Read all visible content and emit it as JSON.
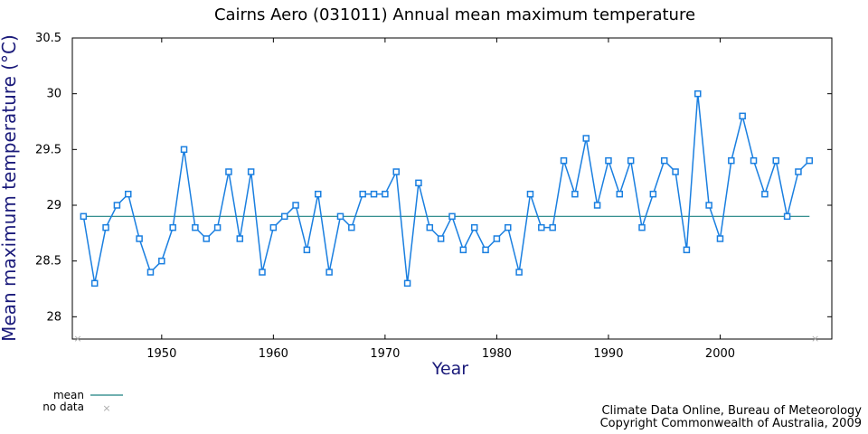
{
  "chart_data": {
    "type": "line",
    "title": "Cairns Aero (031011) Annual mean maximum temperature",
    "xlabel": "Year",
    "ylabel": "Mean maximum temperature (°C)",
    "xlim": [
      1942,
      2010
    ],
    "ylim": [
      27.8,
      30.5
    ],
    "x_ticks": [
      1950,
      1960,
      1970,
      1980,
      1990,
      2000
    ],
    "y_ticks": [
      "28",
      "28.5",
      "29",
      "29.5",
      "30",
      "30.5"
    ],
    "line_color": "#1a7fe0",
    "mean_color": "#1a8080",
    "mean_value": 28.9,
    "legend": {
      "mean": "mean",
      "no_data": "no data",
      "placement": "bottom-left"
    },
    "no_data_years": [
      1942,
      2009
    ],
    "credits": [
      "Climate Data Online, Bureau of Meteorology",
      "Copyright Commonwealth of Australia, 2009"
    ],
    "series": [
      {
        "x": [
          1943,
          1944,
          1945,
          1946,
          1947,
          1948,
          1949,
          1950,
          1951,
          1952,
          1953,
          1954,
          1955,
          1956,
          1957,
          1958,
          1959,
          1960,
          1961,
          1962,
          1963,
          1964,
          1965,
          1966,
          1967,
          1968,
          1969,
          1970,
          1971,
          1972,
          1973,
          1974,
          1975,
          1976,
          1977,
          1978,
          1979,
          1980,
          1981,
          1982,
          1983,
          1984,
          1985,
          1986,
          1987,
          1988,
          1989,
          1990,
          1991,
          1992,
          1993,
          1994,
          1995,
          1996,
          1997,
          1998,
          1999,
          2000,
          2001,
          2002,
          2003,
          2004,
          2005,
          2006,
          2007,
          2008
        ],
        "values": [
          28.9,
          28.3,
          28.8,
          29.0,
          29.1,
          28.7,
          28.4,
          28.5,
          28.8,
          29.5,
          28.8,
          28.7,
          28.8,
          29.3,
          28.7,
          29.3,
          28.4,
          28.8,
          28.9,
          29.0,
          28.6,
          29.1,
          28.4,
          28.9,
          28.8,
          29.1,
          29.1,
          29.1,
          29.3,
          28.3,
          29.2,
          28.8,
          28.7,
          28.9,
          28.6,
          28.8,
          28.6,
          28.7,
          28.8,
          28.4,
          29.1,
          28.8,
          28.8,
          29.4,
          29.1,
          29.6,
          29.0,
          29.4,
          29.1,
          29.4,
          28.8,
          29.1,
          29.4,
          29.3,
          28.6,
          30.0,
          29.0,
          28.7,
          29.4,
          29.8,
          29.4,
          29.1,
          29.4,
          28.9,
          29.3,
          29.4
        ]
      }
    ]
  }
}
